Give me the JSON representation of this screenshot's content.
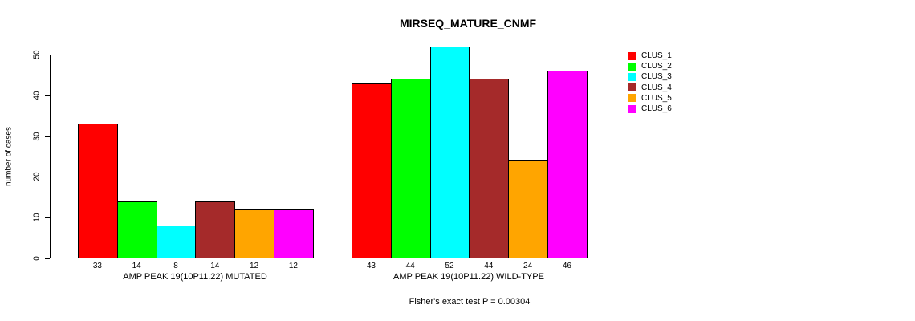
{
  "chart_data": {
    "type": "bar",
    "title": "MIRSEQ_MATURE_CNMF",
    "ylabel": "number of cases",
    "ylim": [
      0,
      50
    ],
    "yticks": [
      0,
      10,
      20,
      30,
      40,
      50
    ],
    "grid": false,
    "legend_position": "right",
    "legend": [
      "CLUS_1",
      "CLUS_2",
      "CLUS_3",
      "CLUS_4",
      "CLUS_5",
      "CLUS_6"
    ],
    "series_colors": [
      "#FF0000",
      "#00FF00",
      "#00FFFF",
      "#A52A2A",
      "#FFA500",
      "#FF00FF"
    ],
    "groups": [
      {
        "label": "AMP PEAK 19(10P11.22) MUTATED",
        "values": [
          33,
          14,
          8,
          14,
          12,
          12
        ],
        "value_labels": [
          "33",
          "14",
          "8",
          "14",
          "12",
          "12"
        ]
      },
      {
        "label": "AMP PEAK 19(10P11.22) WILD-TYPE",
        "values": [
          43,
          44,
          52,
          44,
          24,
          46
        ],
        "value_labels": [
          "43",
          "44",
          "52",
          "44",
          "24",
          "46"
        ]
      }
    ],
    "footnote": "Fisher's exact test P = 0.00304"
  }
}
